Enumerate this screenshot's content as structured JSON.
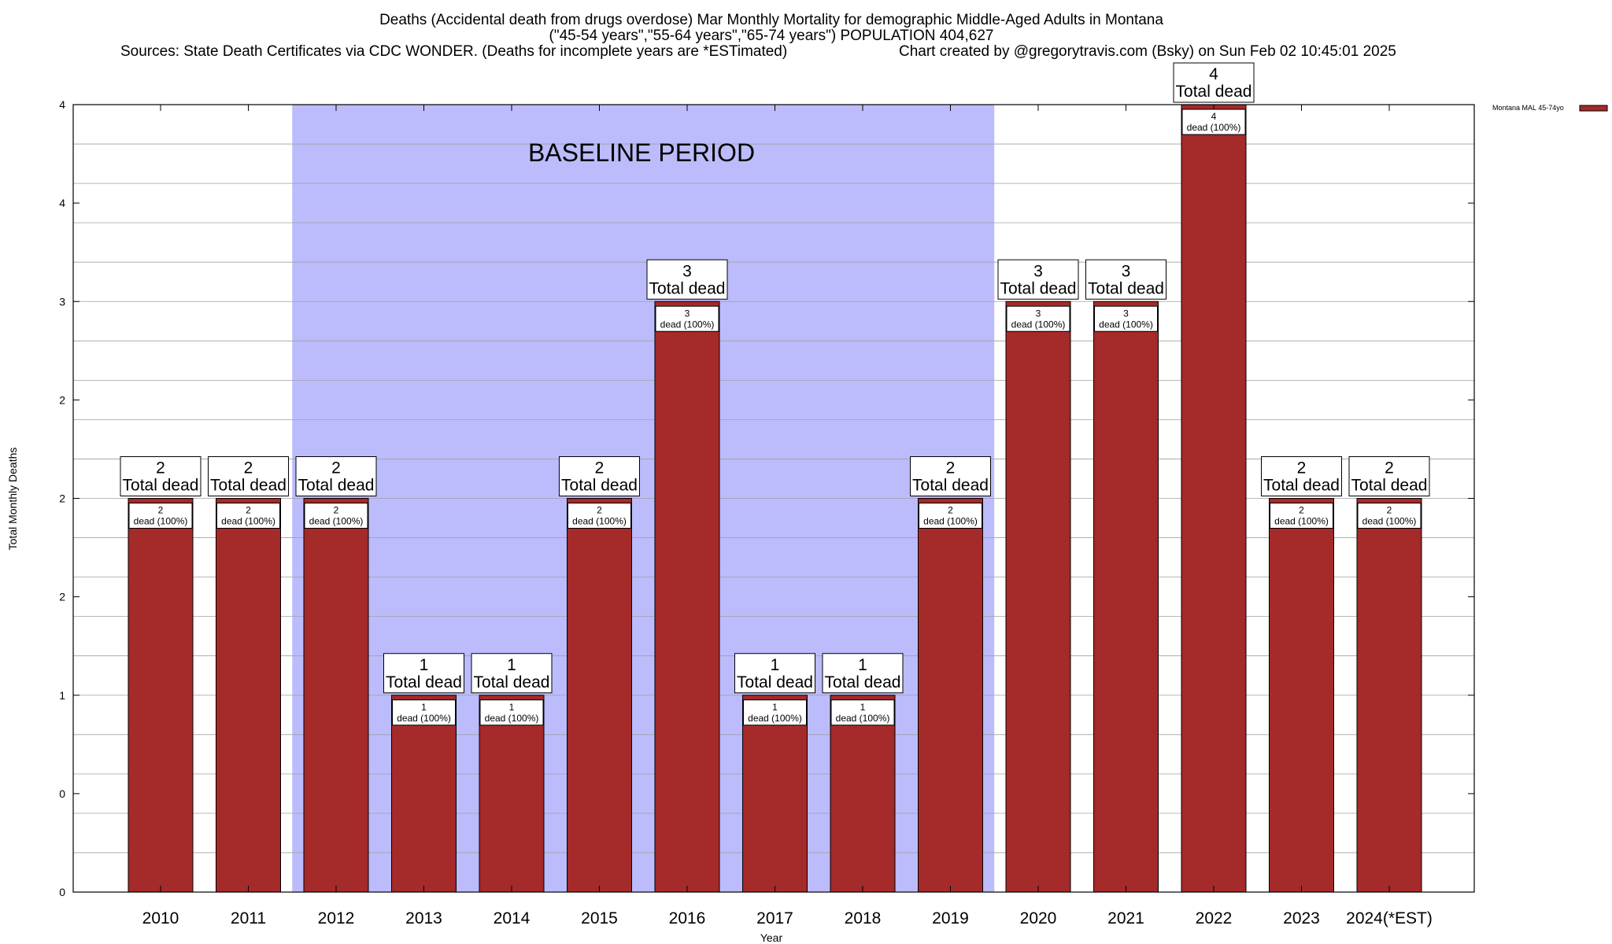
{
  "chart_data": {
    "type": "bar",
    "title_lines": [
      "Deaths (Accidental death from drugs overdose) Mar Monthly Mortality for demographic Middle-Aged Adults in Montana",
      "(\"45-54 years\",\"55-64 years\",\"65-74 years\") POPULATION 404,627"
    ],
    "sources_text": "Sources: State Death Certificates via CDC WONDER. (Deaths for incomplete years are *ESTimated)",
    "credit_text": "Chart created by @gregorytravis.com (Bsky) on Sun Feb 02 10:45:01 2025",
    "xlabel": "Year",
    "ylabel": "Total Monthly Deaths",
    "ylim": [
      0,
      4
    ],
    "y_tick_labels": [
      "0",
      "0",
      "1",
      "2",
      "2",
      "2",
      "3",
      "4",
      "4"
    ],
    "grid": true,
    "legend_position": "top-right",
    "categories": [
      "2010",
      "2011",
      "2012",
      "2013",
      "2014",
      "2015",
      "2016",
      "2017",
      "2018",
      "2019",
      "2020",
      "2021",
      "2022",
      "2023",
      "2024(*EST)"
    ],
    "series": [
      {
        "name": "Montana MAL 45-74yo",
        "values": [
          2,
          2,
          2,
          1,
          1,
          2,
          3,
          1,
          1,
          2,
          3,
          3,
          4,
          2,
          2
        ]
      }
    ],
    "total_label_line2": "Total dead",
    "inner_label_suffix": "dead (100%)",
    "baseline_period": {
      "label": "BASELINE PERIOD",
      "start_category": "2012",
      "end_category": "2019"
    },
    "colors": {
      "bar": "#a52a2a",
      "baseline_shade": "#bcbcfc",
      "grid": "#a0a0a0"
    }
  }
}
